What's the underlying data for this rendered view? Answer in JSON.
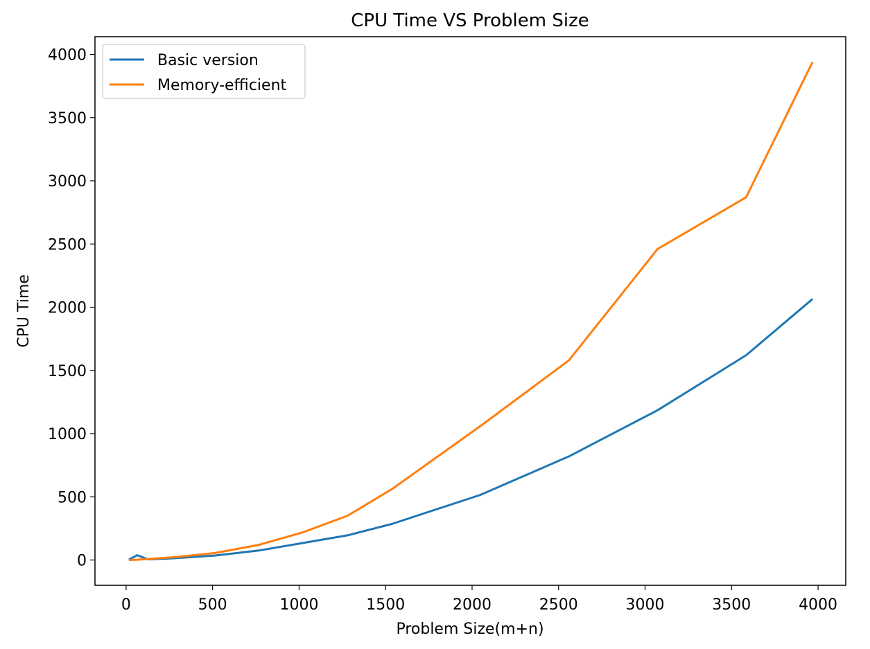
{
  "chart_data": {
    "type": "line",
    "title": "CPU Time VS Problem Size",
    "xlabel": "Problem Size(m+n)",
    "ylabel": "CPU Time",
    "xlim": [
      -180,
      4160
    ],
    "ylim": [
      -200,
      4140
    ],
    "xticks": [
      0,
      500,
      1000,
      1500,
      2000,
      2500,
      3000,
      3500,
      4000
    ],
    "yticks": [
      0,
      500,
      1000,
      1500,
      2000,
      2500,
      3000,
      3500,
      4000
    ],
    "grid": false,
    "legend_position": "upper-left",
    "series": [
      {
        "name": "Basic version",
        "color": "#1f77b4",
        "x": [
          16,
          64,
          128,
          256,
          512,
          768,
          1024,
          1280,
          1536,
          2048,
          2560,
          3072,
          3584,
          3968
        ],
        "y": [
          2,
          38,
          5,
          12,
          35,
          75,
          135,
          195,
          285,
          515,
          820,
          1185,
          1620,
          2065
        ]
      },
      {
        "name": "Memory-efficient",
        "color": "#ff7f0e",
        "x": [
          16,
          64,
          128,
          256,
          512,
          768,
          1024,
          1280,
          1536,
          2048,
          2560,
          3072,
          3584,
          3968
        ],
        "y": [
          0,
          2,
          8,
          20,
          55,
          120,
          220,
          350,
          560,
          1060,
          1580,
          2460,
          2870,
          3940
        ]
      }
    ]
  }
}
